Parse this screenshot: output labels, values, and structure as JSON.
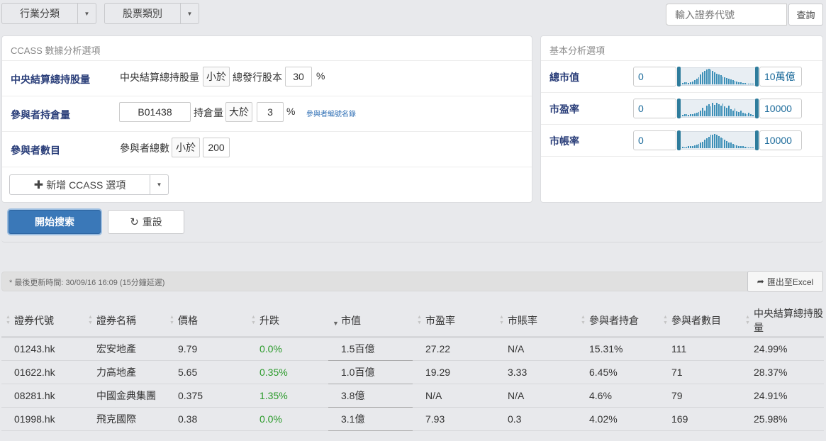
{
  "toolbar": {
    "industry": "行業分類",
    "stock_type": "股票類別",
    "search_placeholder": "輸入證券代號",
    "search_button": "查詢"
  },
  "ccass": {
    "title": "CCASS 數據分析選項",
    "rows": [
      {
        "label": "中央結算總持股量",
        "text1": "中央結算總持股量",
        "op": "小於",
        "text2": "總發行股本",
        "value": "30",
        "unit": "%"
      },
      {
        "label": "參與者持倉量",
        "participant": "B01438",
        "text1": "持倉量",
        "op": "大於",
        "value": "3",
        "unit": "%",
        "link": "參與者編號名錄"
      },
      {
        "label": "參與者數目",
        "text1": "參與者總數",
        "op": "小於",
        "value": "200"
      }
    ],
    "add_button": "新增 CCASS 選項"
  },
  "basic": {
    "title": "基本分析選項",
    "rows": [
      {
        "label": "總市值",
        "min": "0",
        "max": "10萬億",
        "range": [
          0,
          1
        ]
      },
      {
        "label": "市盈率",
        "min": "0",
        "max": "10000",
        "range": [
          0,
          1
        ]
      },
      {
        "label": "市帳率",
        "min": "0",
        "max": "10000",
        "range": [
          0,
          1
        ]
      }
    ]
  },
  "actions": {
    "search": "開始搜索",
    "reset": "重設"
  },
  "status": {
    "updated": "* 最後更新時間: 30/09/16 16:09 (15分鐘延遲)",
    "export": "匯出至Excel"
  },
  "table": {
    "headers": [
      "證券代號",
      "證券名稱",
      "價格",
      "升跌",
      "市值",
      "市盈率",
      "市賬率",
      "參與者持倉",
      "參與者數目",
      "中央結算總持股量"
    ],
    "sorted_column": "市值",
    "sort_direction": "descending",
    "rows": [
      [
        "01243.hk",
        "宏安地產",
        "9.79",
        "0.0%",
        "1.5百億",
        "27.22",
        "N/A",
        "15.31%",
        "111",
        "24.99%"
      ],
      [
        "01622.hk",
        "力高地產",
        "5.65",
        "0.35%",
        "1.0百億",
        "19.29",
        "3.33",
        "6.45%",
        "71",
        "28.37%"
      ],
      [
        "08281.hk",
        "中國金典集團",
        "0.375",
        "1.35%",
        "3.8億",
        "N/A",
        "N/A",
        "4.6%",
        "79",
        "24.91%"
      ],
      [
        "01998.hk",
        "飛克國際",
        "0.38",
        "0.0%",
        "3.1億",
        "7.93",
        "0.3",
        "4.02%",
        "169",
        "25.98%"
      ]
    ]
  },
  "colors": {
    "primary": "#3a78b8",
    "label": "#2b3f7a",
    "positive": "#2a9a2a",
    "link": "#2f6fb5"
  }
}
